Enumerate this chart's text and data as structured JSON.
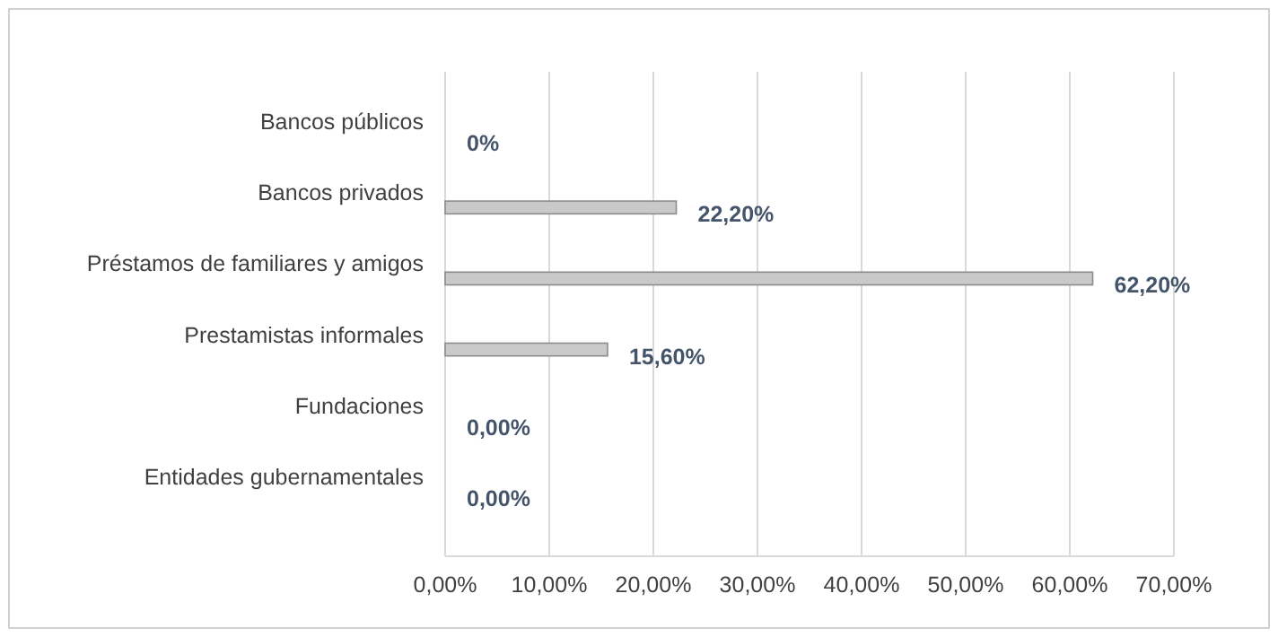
{
  "chart_data": {
    "type": "bar",
    "orientation": "horizontal",
    "categories": [
      "Bancos públicos",
      "Bancos privados",
      "Préstamos de familiares y amigos",
      "Prestamistas informales",
      "Fundaciones",
      "Entidades gubernamentales"
    ],
    "values": [
      0,
      22.2,
      62.2,
      15.6,
      0,
      0
    ],
    "value_labels": [
      "0%",
      "22,20%",
      "62,20%",
      "15,60%",
      "0,00%",
      "0,00%"
    ],
    "color": "#c9c9c9",
    "xlim": [
      0,
      70
    ],
    "xticks": [
      {
        "value": 0,
        "label": "0,00%"
      },
      {
        "value": 10,
        "label": "10,00%"
      },
      {
        "value": 20,
        "label": "20,00%"
      },
      {
        "value": 30,
        "label": "30,00%"
      },
      {
        "value": 40,
        "label": "40,00%"
      },
      {
        "value": 50,
        "label": "50,00%"
      },
      {
        "value": 60,
        "label": "60,00%"
      },
      {
        "value": 70,
        "label": "70,00%"
      }
    ],
    "grid": "x"
  }
}
